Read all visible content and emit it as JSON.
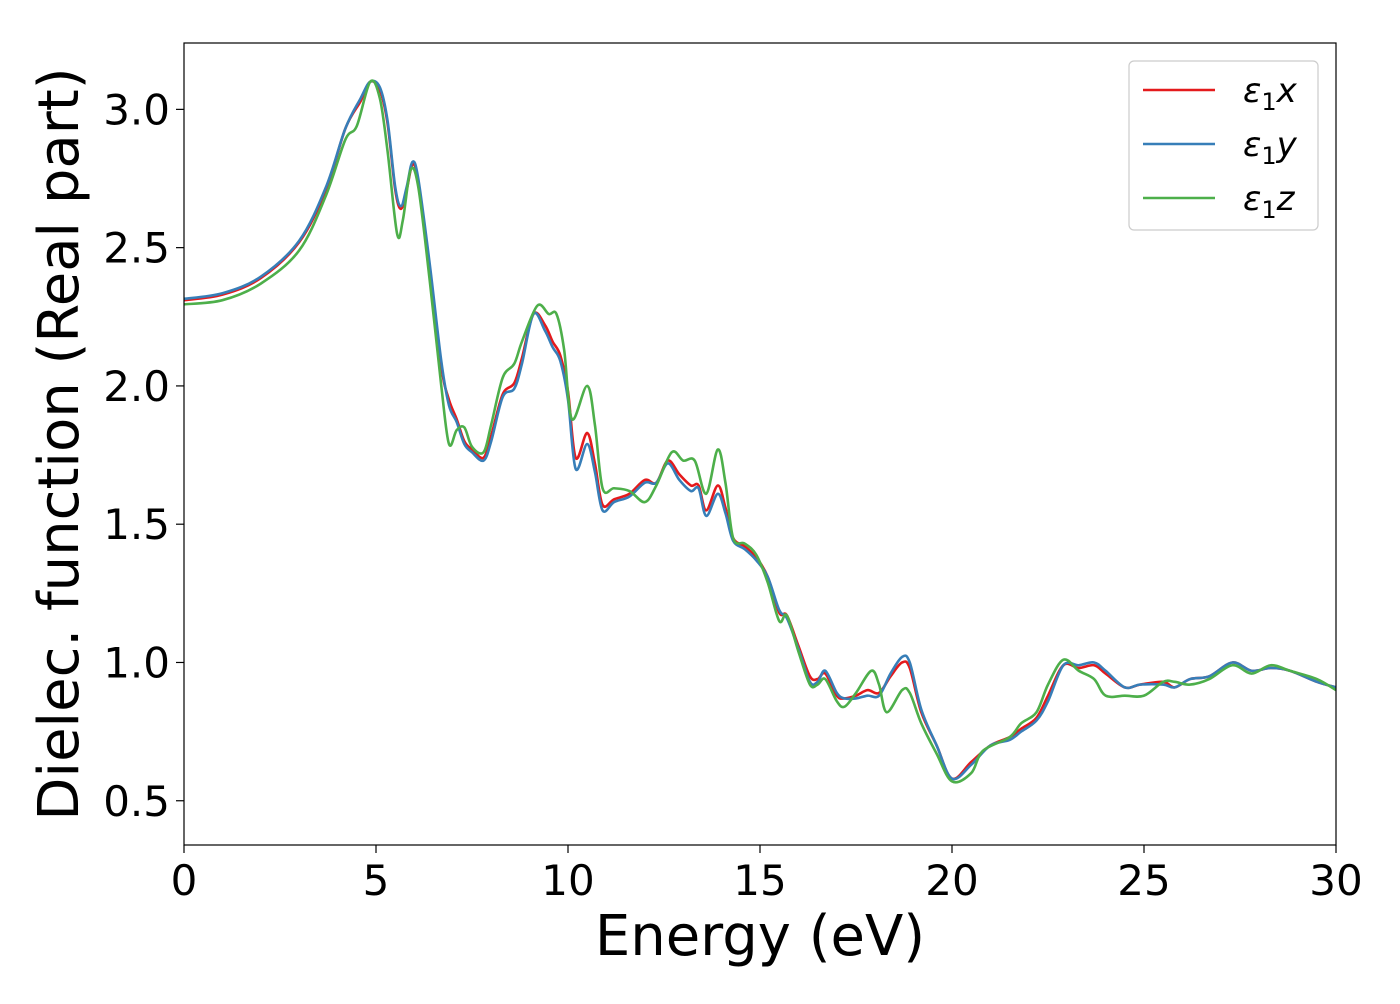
{
  "chart_data": {
    "type": "line",
    "title": "",
    "xlabel": "Energy (eV)",
    "ylabel": "Dielec. function (Real part)",
    "xlim": [
      0,
      30
    ],
    "ylim": [
      0.34,
      3.24
    ],
    "xticks": [
      0,
      5,
      10,
      15,
      20,
      25,
      30
    ],
    "xtick_labels": [
      "0",
      "5",
      "10",
      "15",
      "20",
      "25",
      "30"
    ],
    "yticks": [
      0.5,
      1.0,
      1.5,
      2.0,
      2.5,
      3.0
    ],
    "ytick_labels": [
      "0.5",
      "1.0",
      "1.5",
      "2.0",
      "2.5",
      "3.0"
    ],
    "grid": false,
    "legend_position": "top-right",
    "series": [
      {
        "name": "ε1x",
        "legend_base": "ε",
        "legend_sub": "1",
        "legend_var": "x",
        "color": "#e41a1c",
        "points": [
          [
            0,
            2.31
          ],
          [
            1,
            2.33
          ],
          [
            2,
            2.39
          ],
          [
            3,
            2.52
          ],
          [
            3.7,
            2.71
          ],
          [
            4.2,
            2.93
          ],
          [
            4.6,
            3.03
          ],
          [
            4.85,
            3.1
          ],
          [
            5.1,
            3.07
          ],
          [
            5.3,
            2.95
          ],
          [
            5.5,
            2.71
          ],
          [
            5.65,
            2.64
          ],
          [
            5.8,
            2.71
          ],
          [
            5.95,
            2.8
          ],
          [
            6.1,
            2.74
          ],
          [
            6.4,
            2.42
          ],
          [
            6.7,
            2.07
          ],
          [
            6.9,
            1.95
          ],
          [
            7.1,
            1.88
          ],
          [
            7.3,
            1.8
          ],
          [
            7.5,
            1.77
          ],
          [
            7.8,
            1.74
          ],
          [
            8.0,
            1.82
          ],
          [
            8.3,
            1.97
          ],
          [
            8.6,
            2.01
          ],
          [
            8.8,
            2.1
          ],
          [
            9.1,
            2.26
          ],
          [
            9.4,
            2.22
          ],
          [
            9.6,
            2.16
          ],
          [
            9.8,
            2.11
          ],
          [
            10.0,
            1.98
          ],
          [
            10.2,
            1.74
          ],
          [
            10.5,
            1.83
          ],
          [
            10.7,
            1.72
          ],
          [
            10.9,
            1.57
          ],
          [
            11.2,
            1.59
          ],
          [
            11.6,
            1.61
          ],
          [
            12.0,
            1.66
          ],
          [
            12.3,
            1.65
          ],
          [
            12.6,
            1.73
          ],
          [
            12.9,
            1.68
          ],
          [
            13.2,
            1.64
          ],
          [
            13.4,
            1.64
          ],
          [
            13.6,
            1.55
          ],
          [
            13.9,
            1.64
          ],
          [
            14.1,
            1.56
          ],
          [
            14.3,
            1.45
          ],
          [
            14.6,
            1.42
          ],
          [
            14.9,
            1.38
          ],
          [
            15.2,
            1.31
          ],
          [
            15.5,
            1.18
          ],
          [
            15.7,
            1.17
          ],
          [
            16.0,
            1.06
          ],
          [
            16.3,
            0.95
          ],
          [
            16.5,
            0.94
          ],
          [
            16.7,
            0.96
          ],
          [
            17.0,
            0.88
          ],
          [
            17.2,
            0.87
          ],
          [
            17.5,
            0.88
          ],
          [
            17.8,
            0.9
          ],
          [
            18.1,
            0.89
          ],
          [
            18.4,
            0.95
          ],
          [
            18.7,
            1.0
          ],
          [
            18.9,
            0.98
          ],
          [
            19.2,
            0.82
          ],
          [
            19.6,
            0.7
          ],
          [
            20.0,
            0.58
          ],
          [
            20.5,
            0.64
          ],
          [
            21.0,
            0.7
          ],
          [
            21.5,
            0.73
          ],
          [
            21.8,
            0.76
          ],
          [
            22.2,
            0.8
          ],
          [
            22.5,
            0.88
          ],
          [
            22.9,
            0.99
          ],
          [
            23.3,
            0.98
          ],
          [
            23.7,
            0.99
          ],
          [
            24.0,
            0.96
          ],
          [
            24.5,
            0.91
          ],
          [
            24.9,
            0.92
          ],
          [
            25.5,
            0.93
          ],
          [
            25.8,
            0.91
          ],
          [
            26.2,
            0.94
          ],
          [
            26.7,
            0.95
          ],
          [
            27.3,
            1.0
          ],
          [
            27.8,
            0.97
          ],
          [
            28.3,
            0.98
          ],
          [
            28.8,
            0.97
          ],
          [
            29.5,
            0.93
          ],
          [
            30,
            0.91
          ]
        ]
      },
      {
        "name": "ε1y",
        "legend_base": "ε",
        "legend_sub": "1",
        "legend_var": "y",
        "color": "#377eb8",
        "points": [
          [
            0,
            2.315
          ],
          [
            1,
            2.335
          ],
          [
            2,
            2.395
          ],
          [
            3,
            2.525
          ],
          [
            3.7,
            2.72
          ],
          [
            4.2,
            2.93
          ],
          [
            4.6,
            3.04
          ],
          [
            4.85,
            3.1
          ],
          [
            5.1,
            3.08
          ],
          [
            5.3,
            2.96
          ],
          [
            5.5,
            2.72
          ],
          [
            5.65,
            2.65
          ],
          [
            5.8,
            2.72
          ],
          [
            5.95,
            2.81
          ],
          [
            6.1,
            2.75
          ],
          [
            6.4,
            2.44
          ],
          [
            6.7,
            2.09
          ],
          [
            6.9,
            1.93
          ],
          [
            7.1,
            1.87
          ],
          [
            7.3,
            1.79
          ],
          [
            7.5,
            1.76
          ],
          [
            7.8,
            1.73
          ],
          [
            8.0,
            1.8
          ],
          [
            8.3,
            1.96
          ],
          [
            8.6,
            1.99
          ],
          [
            8.8,
            2.08
          ],
          [
            9.1,
            2.26
          ],
          [
            9.4,
            2.2
          ],
          [
            9.6,
            2.14
          ],
          [
            9.8,
            2.09
          ],
          [
            10.0,
            1.95
          ],
          [
            10.2,
            1.7
          ],
          [
            10.5,
            1.79
          ],
          [
            10.7,
            1.69
          ],
          [
            10.9,
            1.55
          ],
          [
            11.2,
            1.58
          ],
          [
            11.6,
            1.6
          ],
          [
            12.0,
            1.65
          ],
          [
            12.3,
            1.65
          ],
          [
            12.6,
            1.72
          ],
          [
            12.9,
            1.66
          ],
          [
            13.2,
            1.62
          ],
          [
            13.4,
            1.63
          ],
          [
            13.6,
            1.53
          ],
          [
            13.9,
            1.61
          ],
          [
            14.1,
            1.54
          ],
          [
            14.3,
            1.44
          ],
          [
            14.6,
            1.41
          ],
          [
            14.9,
            1.37
          ],
          [
            15.2,
            1.31
          ],
          [
            15.5,
            1.19
          ],
          [
            15.7,
            1.16
          ],
          [
            16.0,
            1.05
          ],
          [
            16.3,
            0.93
          ],
          [
            16.5,
            0.93
          ],
          [
            16.7,
            0.97
          ],
          [
            17.0,
            0.89
          ],
          [
            17.2,
            0.87
          ],
          [
            17.5,
            0.87
          ],
          [
            17.8,
            0.88
          ],
          [
            18.1,
            0.88
          ],
          [
            18.4,
            0.96
          ],
          [
            18.7,
            1.02
          ],
          [
            18.9,
            1.0
          ],
          [
            19.2,
            0.83
          ],
          [
            19.6,
            0.7
          ],
          [
            20.0,
            0.58
          ],
          [
            20.5,
            0.63
          ],
          [
            21.0,
            0.7
          ],
          [
            21.5,
            0.72
          ],
          [
            21.8,
            0.75
          ],
          [
            22.2,
            0.79
          ],
          [
            22.5,
            0.86
          ],
          [
            22.9,
            0.99
          ],
          [
            23.3,
            0.99
          ],
          [
            23.7,
            1.0
          ],
          [
            24.0,
            0.97
          ],
          [
            24.5,
            0.91
          ],
          [
            24.9,
            0.92
          ],
          [
            25.5,
            0.92
          ],
          [
            25.8,
            0.91
          ],
          [
            26.2,
            0.94
          ],
          [
            26.7,
            0.95
          ],
          [
            27.3,
            1.0
          ],
          [
            27.8,
            0.97
          ],
          [
            28.3,
            0.98
          ],
          [
            28.8,
            0.97
          ],
          [
            29.5,
            0.93
          ],
          [
            30,
            0.91
          ]
        ]
      },
      {
        "name": "ε1z",
        "legend_base": "ε",
        "legend_sub": "1",
        "legend_var": "z",
        "color": "#4daf4a",
        "points": [
          [
            0,
            2.295
          ],
          [
            1,
            2.31
          ],
          [
            2,
            2.37
          ],
          [
            3,
            2.49
          ],
          [
            3.7,
            2.69
          ],
          [
            4.2,
            2.89
          ],
          [
            4.5,
            2.94
          ],
          [
            4.85,
            3.1
          ],
          [
            5.1,
            3.04
          ],
          [
            5.3,
            2.85
          ],
          [
            5.55,
            2.55
          ],
          [
            5.7,
            2.6
          ],
          [
            5.9,
            2.78
          ],
          [
            6.1,
            2.72
          ],
          [
            6.4,
            2.38
          ],
          [
            6.7,
            2.0
          ],
          [
            6.9,
            1.79
          ],
          [
            7.1,
            1.84
          ],
          [
            7.3,
            1.85
          ],
          [
            7.5,
            1.78
          ],
          [
            7.8,
            1.76
          ],
          [
            8.0,
            1.86
          ],
          [
            8.3,
            2.03
          ],
          [
            8.6,
            2.08
          ],
          [
            8.8,
            2.16
          ],
          [
            9.2,
            2.29
          ],
          [
            9.5,
            2.26
          ],
          [
            9.7,
            2.26
          ],
          [
            9.9,
            2.13
          ],
          [
            10.1,
            1.88
          ],
          [
            10.5,
            2.0
          ],
          [
            10.7,
            1.86
          ],
          [
            10.9,
            1.63
          ],
          [
            11.2,
            1.63
          ],
          [
            11.6,
            1.62
          ],
          [
            12.0,
            1.58
          ],
          [
            12.3,
            1.64
          ],
          [
            12.7,
            1.76
          ],
          [
            13.0,
            1.73
          ],
          [
            13.3,
            1.73
          ],
          [
            13.6,
            1.61
          ],
          [
            13.9,
            1.77
          ],
          [
            14.1,
            1.65
          ],
          [
            14.3,
            1.45
          ],
          [
            14.6,
            1.43
          ],
          [
            14.9,
            1.39
          ],
          [
            15.2,
            1.29
          ],
          [
            15.5,
            1.15
          ],
          [
            15.7,
            1.17
          ],
          [
            16.0,
            1.04
          ],
          [
            16.3,
            0.92
          ],
          [
            16.5,
            0.92
          ],
          [
            16.7,
            0.94
          ],
          [
            17.0,
            0.86
          ],
          [
            17.2,
            0.84
          ],
          [
            17.5,
            0.89
          ],
          [
            17.9,
            0.97
          ],
          [
            18.1,
            0.92
          ],
          [
            18.3,
            0.82
          ],
          [
            18.7,
            0.9
          ],
          [
            18.9,
            0.89
          ],
          [
            19.2,
            0.78
          ],
          [
            19.6,
            0.67
          ],
          [
            20.0,
            0.57
          ],
          [
            20.5,
            0.6
          ],
          [
            20.8,
            0.68
          ],
          [
            21.5,
            0.73
          ],
          [
            21.8,
            0.78
          ],
          [
            22.2,
            0.82
          ],
          [
            22.5,
            0.92
          ],
          [
            22.9,
            1.01
          ],
          [
            23.3,
            0.97
          ],
          [
            23.7,
            0.94
          ],
          [
            24.0,
            0.88
          ],
          [
            24.5,
            0.88
          ],
          [
            25.0,
            0.88
          ],
          [
            25.5,
            0.93
          ],
          [
            25.8,
            0.93
          ],
          [
            26.2,
            0.92
          ],
          [
            26.7,
            0.94
          ],
          [
            27.3,
            0.99
          ],
          [
            27.8,
            0.96
          ],
          [
            28.3,
            0.99
          ],
          [
            28.8,
            0.97
          ],
          [
            29.5,
            0.94
          ],
          [
            30,
            0.9
          ]
        ]
      }
    ]
  }
}
